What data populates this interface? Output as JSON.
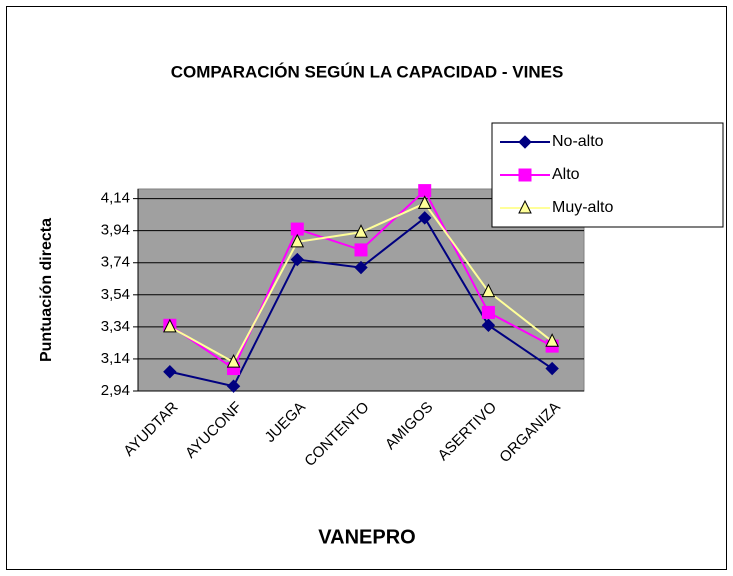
{
  "chart_data": {
    "type": "line",
    "title": "COMPARACIÓN SEGÚN LA CAPACIDAD - VINES",
    "x_label": "VANEPRO",
    "y_label": "Puntuación directa",
    "categories": [
      "AYUDTAR",
      "AYUCONF",
      "JUEGA",
      "CONTENTO",
      "AMIGOS",
      "ASERTIVO",
      "ORGANIZA"
    ],
    "series": [
      {
        "name": "No-alto",
        "color": "#000080",
        "marker": "diamond",
        "values": [
          3.06,
          2.97,
          3.76,
          3.71,
          4.02,
          3.35,
          3.08
        ]
      },
      {
        "name": "Alto",
        "color": "#ff00ff",
        "marker": "square",
        "values": [
          3.35,
          3.08,
          3.95,
          3.82,
          4.19,
          3.43,
          3.22
        ]
      },
      {
        "name": "Muy-alto",
        "color": "#ffff99",
        "marker": "triangle",
        "values": [
          3.34,
          3.12,
          3.87,
          3.93,
          4.11,
          3.56,
          3.25
        ]
      }
    ],
    "ylim": [
      2.94,
      4.2
    ],
    "yticks": [
      {
        "value": 2.94,
        "label": "2,94"
      },
      {
        "value": 3.14,
        "label": "3,14"
      },
      {
        "value": 3.34,
        "label": "3,34"
      },
      {
        "value": 3.54,
        "label": "3,54"
      },
      {
        "value": 3.74,
        "label": "3,74"
      },
      {
        "value": 3.94,
        "label": "3,94"
      },
      {
        "value": 4.14,
        "label": "4,14"
      }
    ],
    "grid": true,
    "plot_background": "#a0a0a0",
    "legend": "upper right"
  }
}
